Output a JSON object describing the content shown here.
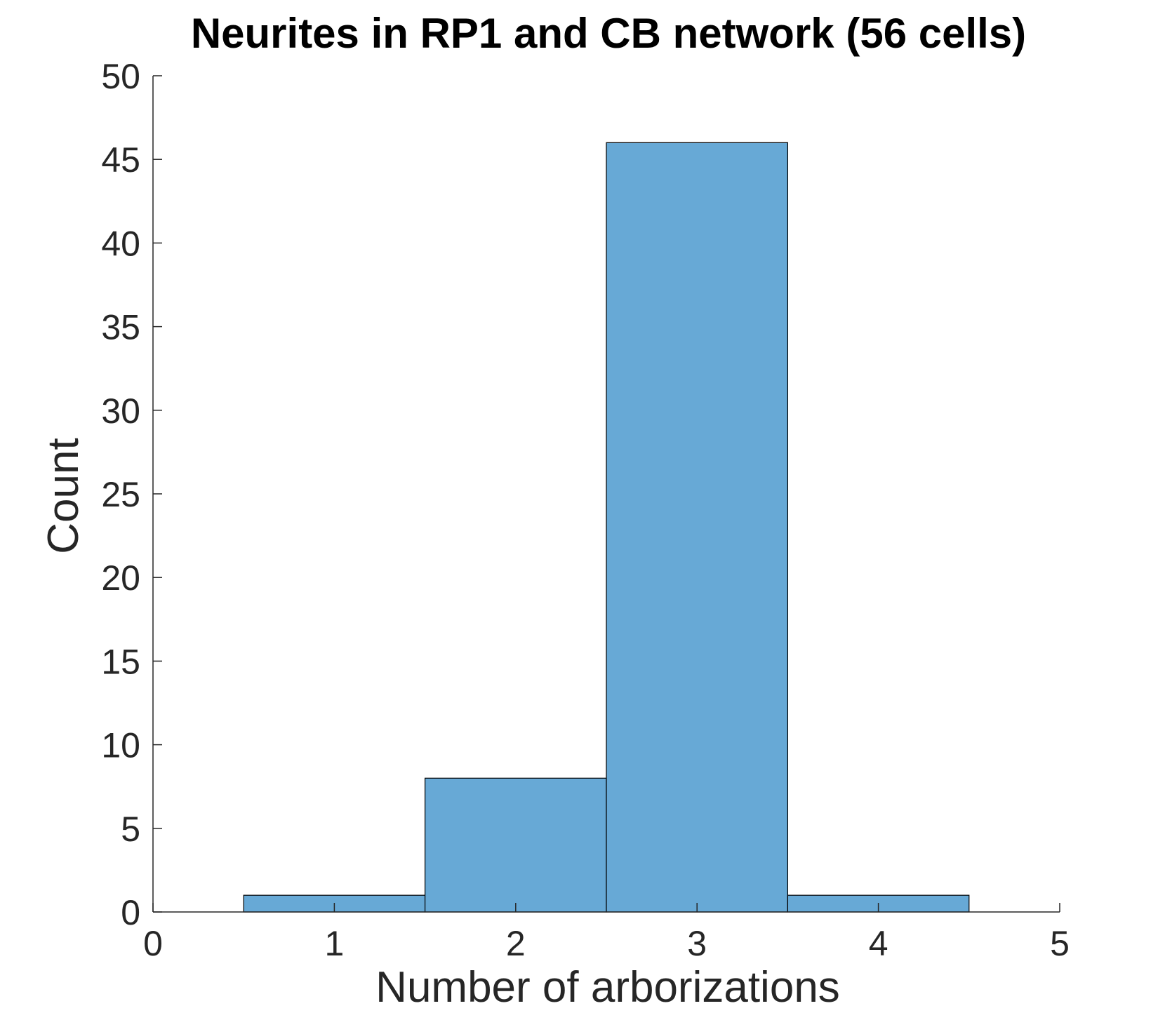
{
  "chart_data": {
    "type": "bar",
    "title": "Neurites in RP1 and CB network (56 cells)",
    "xlabel": "Number of arborizations",
    "ylabel": "Count",
    "categories": [
      "1",
      "2",
      "3",
      "4"
    ],
    "bins": [
      {
        "x": 1,
        "value": 1
      },
      {
        "x": 2,
        "value": 8
      },
      {
        "x": 3,
        "value": 46
      },
      {
        "x": 4,
        "value": 1
      }
    ],
    "values": [
      1,
      8,
      46,
      1
    ],
    "bin_width": 1,
    "xlim": [
      0,
      5
    ],
    "ylim": [
      0,
      50
    ],
    "xticks": [
      "0",
      "1",
      "2",
      "3",
      "4",
      "5"
    ],
    "yticks": [
      "0",
      "5",
      "10",
      "15",
      "20",
      "25",
      "30",
      "35",
      "40",
      "45",
      "50"
    ],
    "grid": false,
    "bar_color": "#67a9d6",
    "edge_color": "#000000"
  }
}
